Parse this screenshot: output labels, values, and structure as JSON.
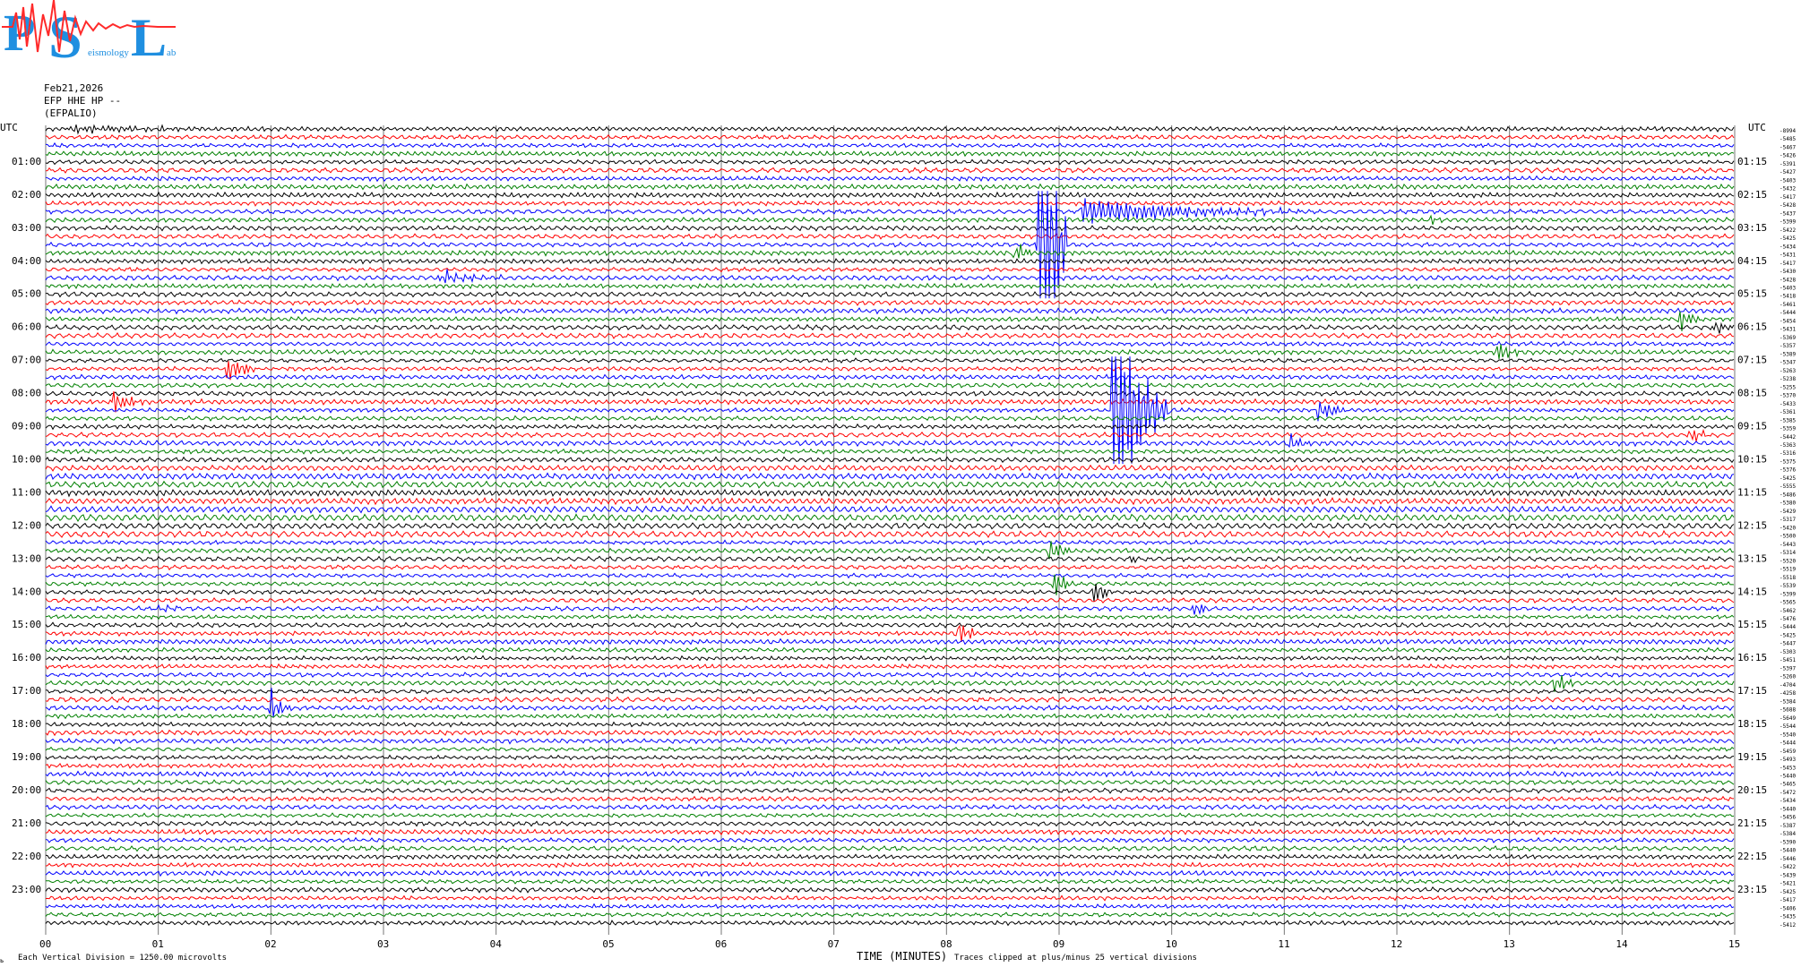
{
  "logo": {
    "letters": [
      "P",
      "S",
      "L"
    ],
    "small_words": [
      "eismology",
      "ab"
    ],
    "colors": [
      "#1f8fe0",
      "#ff2a2a"
    ]
  },
  "header": {
    "date": "Feb21,2026",
    "station": "EFP HHE HP --",
    "site": "(EFPALIO)"
  },
  "footer": {
    "scale": "Each Vertical Division = 1250.00 microvolts",
    "xlabel": "TIME (MINUTES)",
    "clip_note": "Traces clipped at plus/minus 25 vertical divisions",
    "corner_mark": "ь"
  },
  "chart_data": {
    "type": "line",
    "title": "",
    "xlabel": "TIME (MINUTES)",
    "xlim": [
      0,
      15
    ],
    "x_ticks": [
      "00",
      "01",
      "02",
      "03",
      "04",
      "05",
      "06",
      "07",
      "08",
      "09",
      "10",
      "11",
      "12",
      "13",
      "14",
      "15"
    ],
    "left_axis_label": "UTC",
    "right_axis_label": "UTC",
    "left_hour_labels": [
      "01:00",
      "02:00",
      "03:00",
      "04:00",
      "05:00",
      "06:00",
      "07:00",
      "08:00",
      "09:00",
      "10:00",
      "11:00",
      "12:00",
      "13:00",
      "14:00",
      "15:00",
      "16:00",
      "17:00",
      "18:00",
      "19:00",
      "20:00",
      "21:00",
      "22:00",
      "23:00"
    ],
    "right_hour_labels": [
      "01:15",
      "02:15",
      "03:15",
      "04:15",
      "05:15",
      "06:15",
      "07:15",
      "08:15",
      "09:15",
      "10:15",
      "11:15",
      "12:15",
      "13:15",
      "14:15",
      "15:15",
      "16:15",
      "17:15",
      "18:15",
      "19:15",
      "20:15",
      "21:15",
      "22:15",
      "23:15"
    ],
    "traces_per_hour": 4,
    "trace_colors": [
      "#000000",
      "#ff0000",
      "#0000ff",
      "#008000"
    ],
    "grid": "vertical lines at each minute",
    "trace_offsets": [
      "-8994",
      "-5485",
      "-5467",
      "-5426",
      "-5391",
      "-5427",
      "-5403",
      "-5432",
      "-5417",
      "-5428",
      "-5437",
      "-5399",
      "-5422",
      "-5425",
      "-5434",
      "-5431",
      "-5417",
      "-5430",
      "-5428",
      "-5403",
      "-5418",
      "-5461",
      "-5444",
      "-5454",
      "-5431",
      "-5369",
      "-5357",
      "-5389",
      "-5347",
      "-5263",
      "-5238",
      "-5255",
      "-5370",
      "-5433",
      "-5361",
      "-5385",
      "-5359",
      "-5442",
      "-5363",
      "-5316",
      "-5375",
      "-5376",
      "-5425",
      "-5555",
      "-5486",
      "-5380",
      "-5429",
      "-5317",
      "-5420",
      "-5500",
      "-5443",
      "-5314",
      "-5520",
      "-5519",
      "-5518",
      "-5539",
      "-5399",
      "-5565",
      "-5462",
      "-5476",
      "-5444",
      "-5425",
      "-5447",
      "-5303",
      "-5451",
      "-5397",
      "-5260",
      "-4704",
      "-4258",
      "-5384",
      "-5688",
      "-5649",
      "-5544",
      "-5540",
      "-5444",
      "-5459",
      "-5493",
      "-5453",
      "-5440",
      "-5465",
      "-5472",
      "-5434",
      "-5440",
      "-5456",
      "-5387",
      "-5384",
      "-5390",
      "-5440",
      "-5446",
      "-5422",
      "-5439",
      "-5421",
      "-5425",
      "-5417",
      "-5406",
      "-5435",
      "-5412"
    ],
    "events": [
      {
        "minute": 0.2,
        "trace": 0,
        "amp": 0.9,
        "dur": 2.2
      },
      {
        "minute": 0.6,
        "trace": 33,
        "amp": 3.0,
        "dur": 0.3
      },
      {
        "minute": 1.6,
        "trace": 29,
        "amp": 4.0,
        "dur": 0.3
      },
      {
        "minute": 3.5,
        "trace": 18,
        "amp": 2.0,
        "dur": 0.6
      },
      {
        "minute": 8.6,
        "trace": 15,
        "amp": 3.0,
        "dur": 0.2
      },
      {
        "minute": 8.82,
        "trace": 14,
        "amp": 60,
        "dur": 0.25
      },
      {
        "minute": 9.2,
        "trace": 10,
        "amp": 3.5,
        "dur": 2.0
      },
      {
        "minute": 9.48,
        "trace": 34,
        "amp": 28,
        "dur": 0.5
      },
      {
        "minute": 11.3,
        "trace": 34,
        "amp": 3.0,
        "dur": 0.3
      },
      {
        "minute": 11.05,
        "trace": 38,
        "amp": 2.0,
        "dur": 0.2
      },
      {
        "minute": 12.3,
        "trace": 11,
        "amp": 0.8,
        "dur": 0.2
      },
      {
        "minute": 12.9,
        "trace": 27,
        "amp": 3.5,
        "dur": 0.2
      },
      {
        "minute": 14.5,
        "trace": 23,
        "amp": 4.0,
        "dur": 0.2
      },
      {
        "minute": 14.83,
        "trace": 24,
        "amp": 2.0,
        "dur": 0.2
      },
      {
        "minute": 14.6,
        "trace": 37,
        "amp": 3.0,
        "dur": 0.2
      },
      {
        "minute": 13.5,
        "trace": 42,
        "amp": 0.8,
        "dur": 0.3
      },
      {
        "minute": 8.92,
        "trace": 51,
        "amp": 3.0,
        "dur": 0.2
      },
      {
        "minute": 8.95,
        "trace": 55,
        "amp": 4.0,
        "dur": 0.2
      },
      {
        "minute": 9.3,
        "trace": 56,
        "amp": 4.0,
        "dur": 0.2
      },
      {
        "minute": 10.2,
        "trace": 58,
        "amp": 2.0,
        "dur": 0.2
      },
      {
        "minute": 8.1,
        "trace": 61,
        "amp": 4.0,
        "dur": 0.2
      },
      {
        "minute": 13.4,
        "trace": 67,
        "amp": 3.0,
        "dur": 0.2
      },
      {
        "minute": 2.0,
        "trace": 70,
        "amp": 4.0,
        "dur": 0.2
      },
      {
        "minute": 1.0,
        "trace": 58,
        "amp": 1.0,
        "dur": 0.3
      },
      {
        "minute": 9.65,
        "trace": 52,
        "amp": 0.8,
        "dur": 0.2
      }
    ]
  }
}
